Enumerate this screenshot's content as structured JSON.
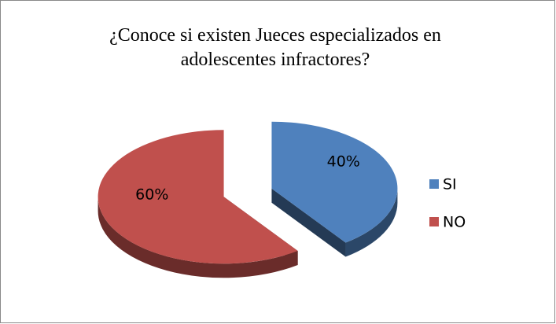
{
  "chart_data": {
    "type": "pie3d",
    "title": "¿Conoce si existen Jueces especializados en adolescentes infractores?",
    "categories": [
      "SI",
      "NO"
    ],
    "values": [
      40,
      60
    ],
    "value_labels": [
      "40%",
      "60%"
    ],
    "colors": [
      "#4f81bd",
      "#c0504d"
    ],
    "legend": "right"
  }
}
